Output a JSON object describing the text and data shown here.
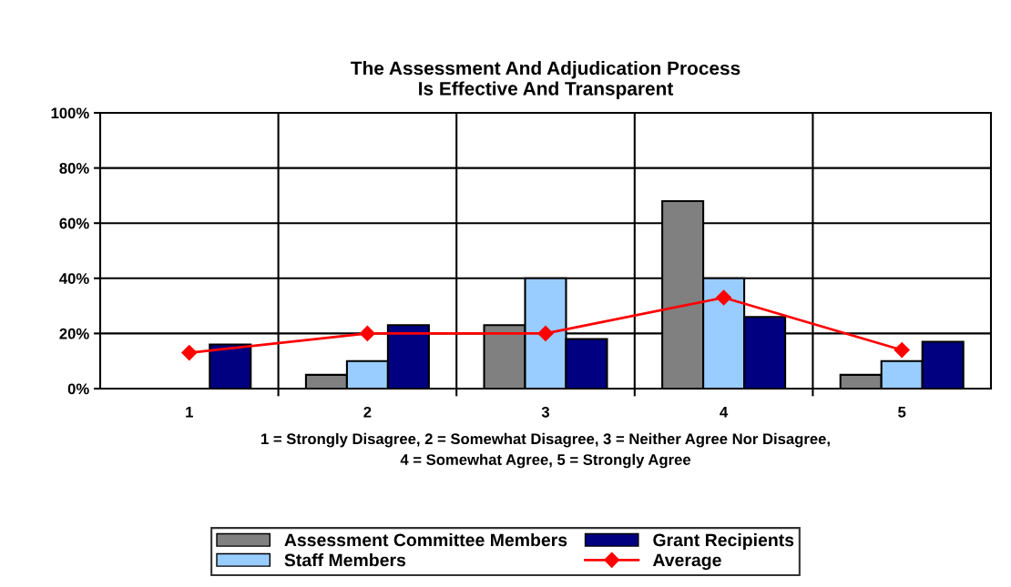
{
  "chart_data": {
    "type": "bar",
    "title": "The Assessment And Adjudication Process\nIs Effective And Transparent",
    "xlabel": "1 = Strongly Disagree, 2 = Somewhat Disagree, 3 = Neither Agree Nor Disagree,\n4 = Somewhat Agree, 5 = Strongly Agree",
    "categories": [
      "1",
      "2",
      "3",
      "4",
      "5"
    ],
    "series": [
      {
        "name": "Assessment Committee Members",
        "color": "#808080",
        "values": [
          null,
          5,
          23,
          68,
          5
        ]
      },
      {
        "name": "Staff Members",
        "color": "#99ccff",
        "values": [
          null,
          10,
          40,
          40,
          10
        ]
      },
      {
        "name": "Grant Recipients",
        "color": "#000080",
        "values": [
          16,
          23,
          18,
          26,
          17
        ]
      },
      {
        "name": "Average",
        "type": "line",
        "color": "#ff0000",
        "marker": "diamond",
        "values": [
          13,
          20,
          20,
          33,
          14
        ]
      }
    ],
    "ylim": [
      0,
      100
    ],
    "yticks": [
      {
        "value": 0,
        "label": "0%"
      },
      {
        "value": 20,
        "label": "20%"
      },
      {
        "value": 40,
        "label": "40%"
      },
      {
        "value": 60,
        "label": "60%"
      },
      {
        "value": 80,
        "label": "80%"
      },
      {
        "value": 100,
        "label": "100%"
      }
    ],
    "grid": true,
    "legend": "bottom"
  }
}
